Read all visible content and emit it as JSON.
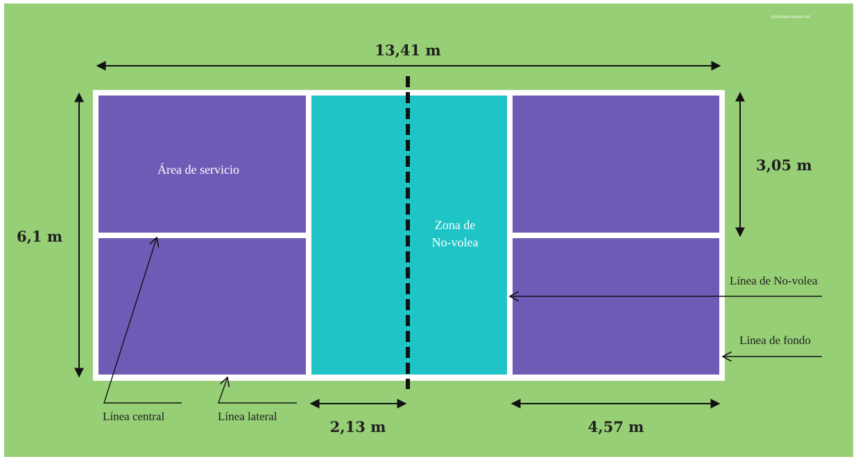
{
  "colors": {
    "background": "#97cf76",
    "service_area": "#6e5bb5",
    "kitchen": "#1ec4c6",
    "court_lines": "#ffffff",
    "net": "#111111"
  },
  "watermark": "pickleball.espana.net",
  "dimensions": {
    "length": "13,41 m",
    "width": "6,1 m",
    "half_width": "3,05 m",
    "kitchen_depth": "2,13 m",
    "service_depth": "4,57 m"
  },
  "zones": {
    "service_area": "Área de servicio",
    "kitchen_line1": "Zona de",
    "kitchen_line2": "No-volea"
  },
  "line_labels": {
    "centerline": "Línea central",
    "sideline": "Línea lateral",
    "non_volley_line": "Línea de No-volea",
    "baseline": "Línea de fondo"
  },
  "icons": {
    "arrow": "arrow-icon",
    "double_arrow": "double-arrow-icon"
  }
}
